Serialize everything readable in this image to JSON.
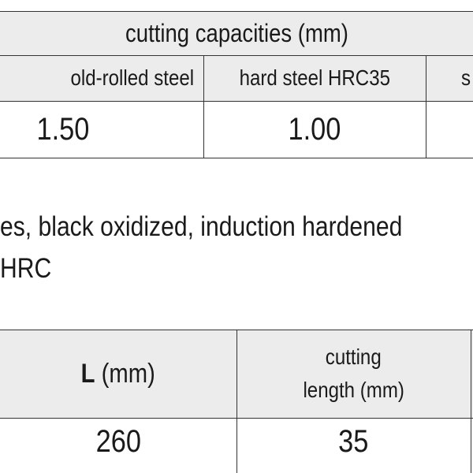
{
  "table1": {
    "title": "cutting capacities (mm)",
    "headers": [
      "old-rolled steel",
      "hard steel HRC35",
      "s"
    ],
    "values": [
      "1.50",
      "1.00"
    ]
  },
  "description": [
    "es, black oxidized, induction hardened",
    "HRC"
  ],
  "table2": {
    "headers": [
      {
        "symbol": "L",
        "unit": "(mm)"
      },
      [
        "cutting",
        "length (mm)"
      ]
    ],
    "values": [
      "260",
      "35"
    ]
  }
}
